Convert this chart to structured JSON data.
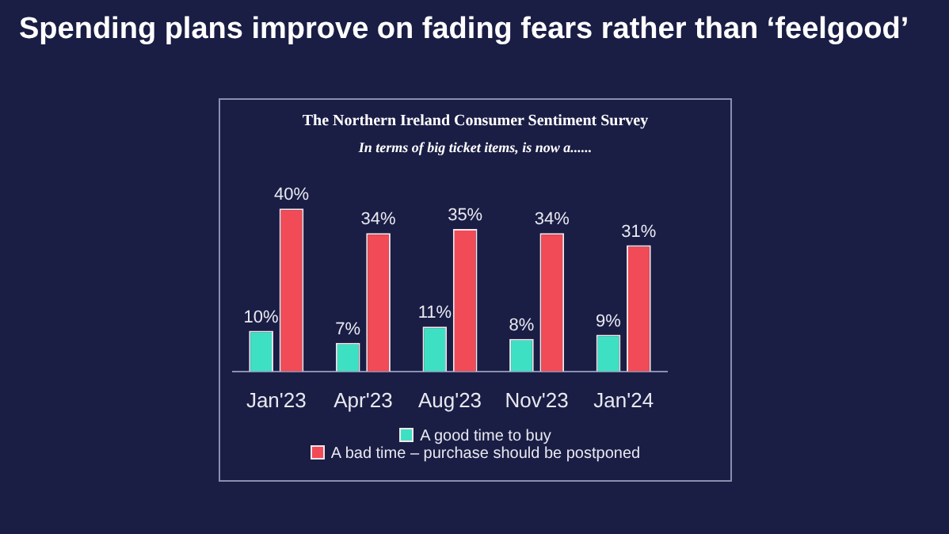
{
  "chart_data": {
    "type": "bar",
    "title": "The Northern Ireland Consumer Sentiment Survey",
    "subtitle": "In terms of big ticket items, is now a......",
    "annotations": [
      "Spending plans improve on fading fears rather than ‘feelgood’"
    ],
    "categories": [
      "Jan'23",
      "Apr'23",
      "Aug'23",
      "Nov'23",
      "Jan'24"
    ],
    "series": [
      {
        "name": "A good time to buy",
        "color": "#3ee0c4",
        "values": [
          10,
          7,
          11,
          8,
          9
        ],
        "value_labels": [
          "10%",
          "7%",
          "11%",
          "8%",
          "9%"
        ]
      },
      {
        "name": "A bad time – purchase should be postponed",
        "color": "#f04b57",
        "values": [
          40,
          34,
          35,
          34,
          31
        ],
        "value_labels": [
          "40%",
          "34%",
          "35%",
          "34%",
          "31%"
        ]
      }
    ],
    "tick_labels": "x",
    "legend": "bottom"
  }
}
